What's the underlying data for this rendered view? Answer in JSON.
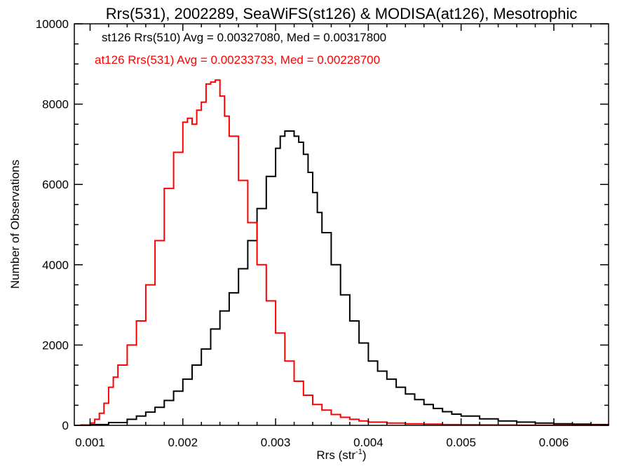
{
  "chart_data": {
    "type": "line",
    "title": "Rrs(531), 2002289, SeaWiFS(st126) & MODISA(at126), Mesotrophic",
    "xlabel_base": "Rrs (str",
    "xlabel_sup": "-1",
    "xlabel_end": ")",
    "ylabel": "Number of Observations",
    "xlim": [
      0.00083,
      0.00659
    ],
    "ylim": [
      0,
      10000
    ],
    "x_ticks": [
      0.001,
      0.002,
      0.003,
      0.004,
      0.005,
      0.006
    ],
    "x_tick_labels": [
      "0.001",
      "0.002",
      "0.003",
      "0.004",
      "0.005",
      "0.006"
    ],
    "y_ticks": [
      0,
      2000,
      4000,
      6000,
      8000,
      10000
    ],
    "y_tick_labels": [
      "0",
      "2000",
      "4000",
      "6000",
      "8000",
      "10000"
    ],
    "grid": false,
    "step": true,
    "series": [
      {
        "name": "st126 Rrs(510) Avg = 0.00327080, Med = 0.00317800",
        "color": "#000000",
        "x": [
          0.00083,
          0.001,
          0.0012,
          0.0014,
          0.0015,
          0.0016,
          0.0017,
          0.0018,
          0.0019,
          0.002,
          0.0021,
          0.0022,
          0.0023,
          0.0024,
          0.0025,
          0.0026,
          0.0027,
          0.0028,
          0.0029,
          0.003,
          0.00305,
          0.0031,
          0.00315,
          0.0032,
          0.00325,
          0.0033,
          0.00335,
          0.0034,
          0.00345,
          0.0035,
          0.0036,
          0.0037,
          0.0038,
          0.0039,
          0.004,
          0.0041,
          0.0042,
          0.0043,
          0.0044,
          0.0045,
          0.0046,
          0.0047,
          0.0048,
          0.0049,
          0.005,
          0.0052,
          0.0054,
          0.0056,
          0.0058,
          0.006,
          0.0062,
          0.0064,
          0.00659
        ],
        "y": [
          0,
          20,
          70,
          150,
          230,
          330,
          450,
          620,
          850,
          1150,
          1500,
          1900,
          2400,
          2850,
          3300,
          3900,
          4600,
          5400,
          6200,
          6900,
          7200,
          7330,
          7330,
          7200,
          7050,
          6750,
          6300,
          5800,
          5300,
          4800,
          4000,
          3250,
          2600,
          2050,
          1600,
          1350,
          1150,
          950,
          780,
          640,
          520,
          420,
          340,
          280,
          230,
          160,
          110,
          80,
          55,
          40,
          30,
          20,
          15
        ]
      },
      {
        "name": "at126 Rrs(531) Avg = 0.00233733, Med = 0.00228700",
        "color": "#ff0000",
        "x": [
          0.00083,
          0.0009,
          0.001,
          0.00105,
          0.0011,
          0.00115,
          0.0012,
          0.00125,
          0.0013,
          0.0014,
          0.0015,
          0.0016,
          0.0017,
          0.0018,
          0.0019,
          0.002,
          0.00205,
          0.0021,
          0.00215,
          0.0022,
          0.00225,
          0.0023,
          0.00235,
          0.0024,
          0.00245,
          0.0025,
          0.0026,
          0.0027,
          0.0028,
          0.0029,
          0.003,
          0.0031,
          0.0032,
          0.0033,
          0.0034,
          0.0035,
          0.0036,
          0.0037,
          0.0038,
          0.0039,
          0.004,
          0.0042,
          0.0044,
          0.0046,
          0.0048,
          0.005,
          0.0052,
          0.0054,
          0.0056,
          0.0058,
          0.006,
          0.0062,
          0.0064,
          0.00659
        ],
        "y": [
          0,
          10,
          60,
          150,
          300,
          550,
          950,
          1200,
          1500,
          2000,
          2600,
          3500,
          4600,
          5900,
          6800,
          7550,
          7650,
          7500,
          7850,
          8050,
          8500,
          8550,
          8600,
          8200,
          7700,
          7200,
          6100,
          5050,
          4000,
          3100,
          2300,
          1600,
          1100,
          750,
          520,
          380,
          270,
          200,
          150,
          110,
          80,
          55,
          40,
          30,
          20,
          15,
          10,
          8,
          6,
          4,
          3,
          2,
          1,
          0
        ]
      }
    ]
  }
}
